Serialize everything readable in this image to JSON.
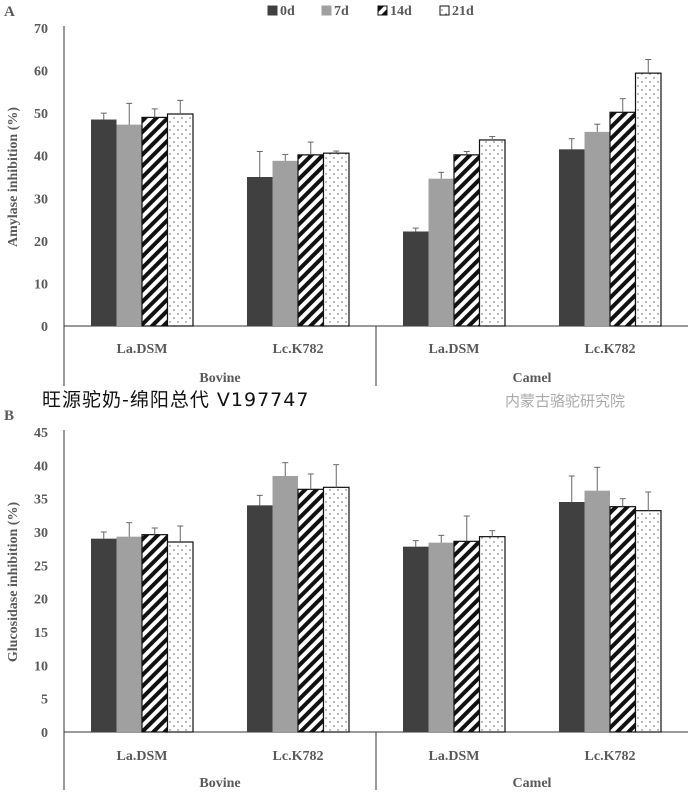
{
  "legend": [
    "0d",
    "7d",
    "14d",
    "21d"
  ],
  "series_colors": {
    "0d": "#404040",
    "7d": "#a0a0a0",
    "14d": "hatch",
    "21d": "dots"
  },
  "chart_data": [
    {
      "type": "bar",
      "panel": "A",
      "ylabel": "Amylase inhibition (%)",
      "ylim": [
        0,
        70
      ],
      "yticks": [
        0,
        10,
        20,
        30,
        40,
        50,
        60,
        70
      ],
      "groups": [
        "Bovine",
        "Camel"
      ],
      "categories": [
        "La.DSM",
        "Lc.K782",
        "La.DSM",
        "Lc.K782"
      ],
      "series": [
        {
          "name": "0d",
          "values": [
            48.5,
            35.0,
            22.2,
            41.5
          ],
          "errors": [
            1.5,
            6.0,
            0.8,
            2.5
          ]
        },
        {
          "name": "7d",
          "values": [
            47.3,
            38.8,
            34.6,
            45.6
          ],
          "errors": [
            5.0,
            1.5,
            1.5,
            1.8
          ]
        },
        {
          "name": "14d",
          "values": [
            49.0,
            40.2,
            40.2,
            50.2
          ],
          "errors": [
            2.0,
            3.0,
            0.8,
            3.2
          ]
        },
        {
          "name": "21d",
          "values": [
            49.8,
            40.6,
            43.7,
            59.4
          ],
          "errors": [
            3.2,
            0.5,
            0.8,
            3.2
          ]
        }
      ]
    },
    {
      "type": "bar",
      "panel": "B",
      "ylabel": "Glucosidase inhibition (%)",
      "ylim": [
        0,
        45
      ],
      "yticks": [
        0,
        5,
        10,
        15,
        20,
        25,
        30,
        35,
        40,
        45
      ],
      "groups": [
        "Bovine",
        "Camel"
      ],
      "categories": [
        "La.DSM",
        "Lc.K782",
        "La.DSM",
        "Lc.K782"
      ],
      "series": [
        {
          "name": "0d",
          "values": [
            29.0,
            34.0,
            27.8,
            34.5
          ],
          "errors": [
            1.0,
            1.5,
            0.9,
            3.9
          ]
        },
        {
          "name": "7d",
          "values": [
            29.3,
            38.4,
            28.4,
            36.2
          ],
          "errors": [
            2.1,
            2.0,
            1.1,
            3.5
          ]
        },
        {
          "name": "14d",
          "values": [
            29.6,
            36.4,
            28.6,
            33.8
          ],
          "errors": [
            1.0,
            2.3,
            3.8,
            1.2
          ]
        },
        {
          "name": "21d",
          "values": [
            28.5,
            36.7,
            29.3,
            33.2
          ],
          "errors": [
            2.4,
            3.4,
            0.9,
            2.8
          ]
        }
      ]
    }
  ],
  "watermark_text": "旺源驼奶-绵阳总代 V197747",
  "watermark_logo_text": "内蒙古骆驼研究院"
}
